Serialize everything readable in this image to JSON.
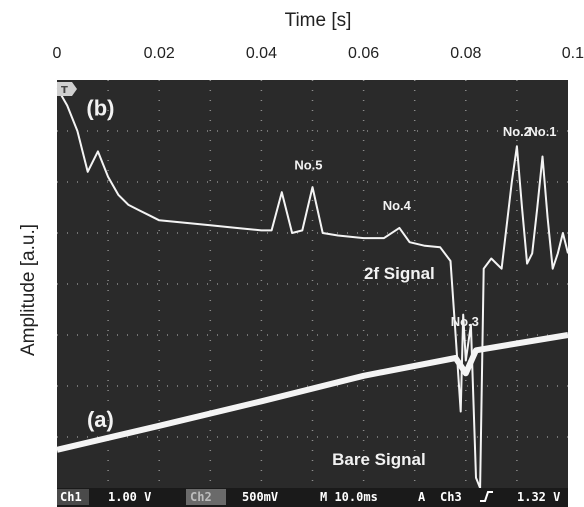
{
  "chart_data": {
    "type": "line",
    "xlabel": "Time [s]",
    "ylabel": "Amplitude [a.u.]",
    "xlim": [
      0,
      0.1
    ],
    "x_ticks": [
      0,
      0.02,
      0.04,
      0.06,
      0.08,
      0.1
    ],
    "x_tick_labels": [
      "0",
      "0.02",
      "0.04",
      "0.06",
      "0.08",
      "0.1"
    ],
    "xaxis_position": "top",
    "grid": true,
    "background": "oscilloscope",
    "series": [
      {
        "name": "2f Signal",
        "label": "(b)",
        "color": "#f4f4f4",
        "points": [
          [
            0.0,
            7.85
          ],
          [
            0.002,
            7.5
          ],
          [
            0.004,
            7.0
          ],
          [
            0.006,
            6.2
          ],
          [
            0.008,
            6.6
          ],
          [
            0.01,
            6.1
          ],
          [
            0.012,
            5.75
          ],
          [
            0.014,
            5.55
          ],
          [
            0.016,
            5.45
          ],
          [
            0.018,
            5.35
          ],
          [
            0.02,
            5.25
          ],
          [
            0.025,
            5.2
          ],
          [
            0.03,
            5.15
          ],
          [
            0.035,
            5.1
          ],
          [
            0.04,
            5.05
          ],
          [
            0.042,
            5.05
          ],
          [
            0.044,
            5.8
          ],
          [
            0.046,
            5.0
          ],
          [
            0.048,
            5.05
          ],
          [
            0.05,
            5.9
          ],
          [
            0.052,
            5.0
          ],
          [
            0.055,
            4.95
          ],
          [
            0.06,
            4.9
          ],
          [
            0.064,
            4.9
          ],
          [
            0.067,
            5.1
          ],
          [
            0.069,
            4.82
          ],
          [
            0.072,
            4.75
          ],
          [
            0.075,
            4.72
          ],
          [
            0.077,
            4.45
          ],
          [
            0.078,
            3.0
          ],
          [
            0.079,
            1.5
          ],
          [
            0.0795,
            3.4
          ],
          [
            0.08,
            2.5
          ],
          [
            0.081,
            3.2
          ],
          [
            0.082,
            0.2
          ],
          [
            0.0828,
            0.0
          ],
          [
            0.0835,
            4.3
          ],
          [
            0.085,
            4.5
          ],
          [
            0.087,
            4.3
          ],
          [
            0.089,
            6.0
          ],
          [
            0.09,
            6.7
          ],
          [
            0.091,
            5.5
          ],
          [
            0.092,
            4.4
          ],
          [
            0.093,
            4.6
          ],
          [
            0.094,
            5.5
          ],
          [
            0.095,
            6.5
          ],
          [
            0.096,
            5.3
          ],
          [
            0.097,
            4.3
          ],
          [
            0.098,
            4.6
          ],
          [
            0.099,
            5.0
          ],
          [
            0.1,
            4.6
          ]
        ]
      },
      {
        "name": "Bare Signal",
        "label": "(a)",
        "color": "#f4f4f4",
        "points": [
          [
            0.0,
            0.75
          ],
          [
            0.02,
            1.22
          ],
          [
            0.04,
            1.7
          ],
          [
            0.06,
            2.2
          ],
          [
            0.078,
            2.55
          ],
          [
            0.08,
            2.25
          ],
          [
            0.082,
            2.7
          ],
          [
            0.1,
            3.0
          ]
        ]
      }
    ],
    "annotations": [
      {
        "text": "No.1",
        "x": 0.095,
        "y": 6.9
      },
      {
        "text": "No.2",
        "x": 0.09,
        "y": 6.9
      },
      {
        "text": "No.3",
        "x": 0.0798,
        "y": 3.18
      },
      {
        "text": "No.4",
        "x": 0.0665,
        "y": 5.45
      },
      {
        "text": "No.5",
        "x": 0.0492,
        "y": 6.25
      },
      {
        "text": "2f Signal",
        "x": 0.067,
        "y": 4.1
      },
      {
        "text": "Bare Signal",
        "x": 0.063,
        "y": 0.45
      },
      {
        "text": "(b)",
        "x": 0.0085,
        "y": 7.3
      },
      {
        "text": "(a)",
        "x": 0.0085,
        "y": 1.2
      }
    ]
  },
  "scope_status": {
    "ch1": "Ch1",
    "ch1_scale": "1.00 V",
    "ch2": "Ch2",
    "ch2_scale": "500mV",
    "timebase": "M 10.0ms",
    "trigger_mode": "A",
    "trigger_source": "Ch3",
    "trigger_slope_icon": "rising-edge-icon",
    "trigger_level": "1.32 V"
  },
  "colors": {
    "screen": "#2a2a2a",
    "trace": "#f4f4f4",
    "grid": "#8a8a8a"
  }
}
